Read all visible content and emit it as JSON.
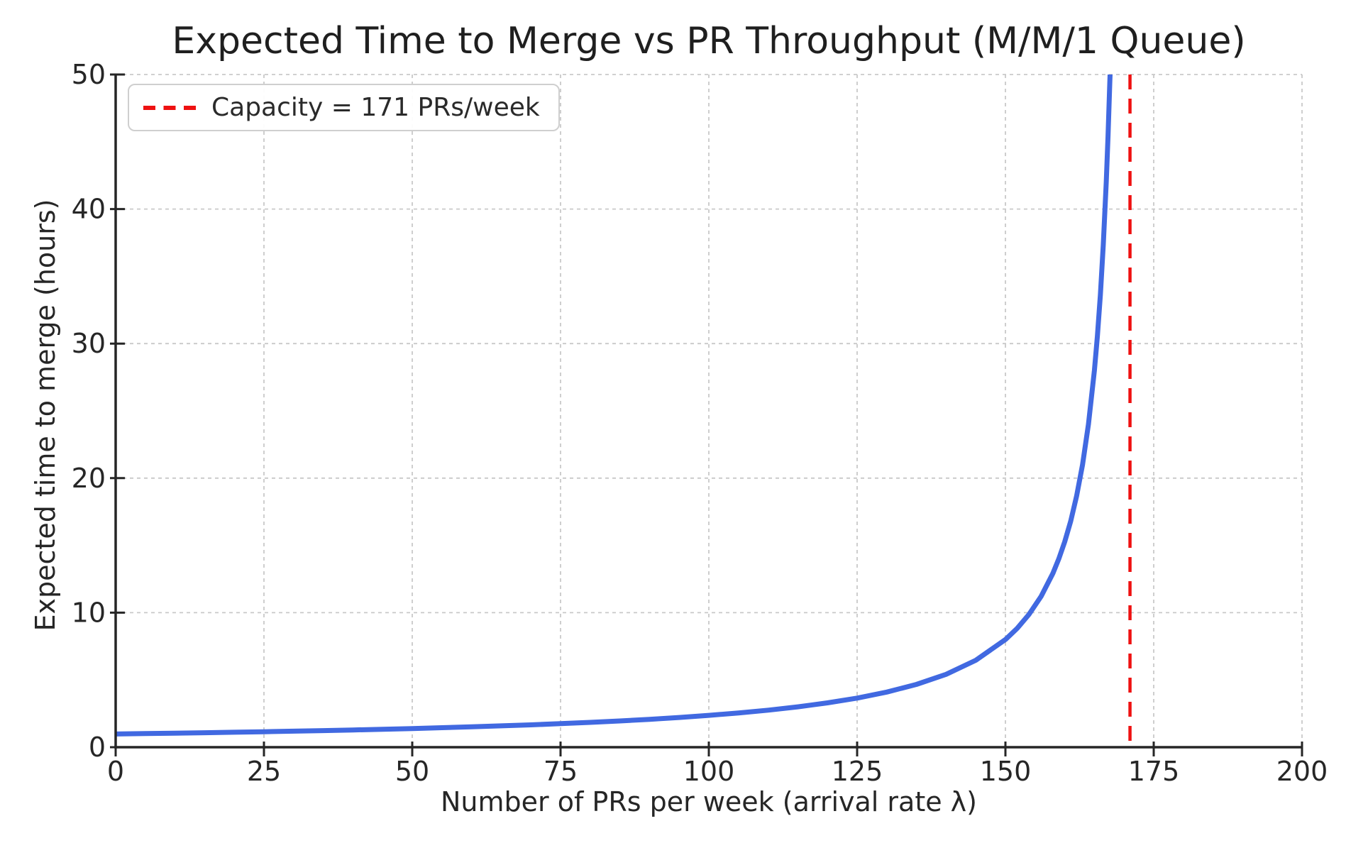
{
  "chart_data": {
    "type": "line",
    "title": "Expected Time to Merge vs PR Throughput (M/M/1 Queue)",
    "xlabel": "Number of PRs per week (arrival rate λ)",
    "ylabel": "Expected time to merge (hours)",
    "xlim": [
      0,
      200
    ],
    "ylim": [
      0,
      50
    ],
    "xticks": [
      0,
      25,
      50,
      75,
      100,
      125,
      150,
      175,
      200
    ],
    "yticks": [
      0,
      10,
      20,
      30,
      40,
      50
    ],
    "grid": {
      "visible": true,
      "linestyle": "dashed",
      "color": "#c9c9c9"
    },
    "axis_color": "#262626",
    "background": "#ffffff",
    "series": [
      {
        "name": "expected_time_to_merge",
        "color": "#4169e1",
        "linestyle": "solid",
        "line_width": 7,
        "x": [
          0,
          5,
          10,
          15,
          20,
          25,
          30,
          35,
          40,
          45,
          50,
          55,
          60,
          65,
          70,
          75,
          80,
          85,
          90,
          95,
          100,
          105,
          110,
          115,
          120,
          125,
          130,
          135,
          140,
          145,
          150,
          152,
          154,
          156,
          158,
          159,
          160,
          161,
          162,
          163,
          164,
          165,
          165.5,
          166,
          166.5,
          167,
          167.3,
          167.6,
          167.64
        ],
        "y": [
          0.982,
          1.012,
          1.043,
          1.077,
          1.113,
          1.151,
          1.191,
          1.235,
          1.282,
          1.333,
          1.388,
          1.448,
          1.514,
          1.585,
          1.663,
          1.75,
          1.846,
          1.953,
          2.074,
          2.211,
          2.366,
          2.545,
          2.754,
          3.0,
          3.294,
          3.652,
          4.098,
          4.667,
          5.419,
          6.462,
          8.0,
          8.842,
          9.882,
          11.2,
          12.923,
          14.0,
          15.273,
          16.8,
          18.667,
          21.0,
          24.0,
          28.0,
          30.545,
          33.6,
          37.333,
          42.0,
          45.405,
          49.412,
          50.0
        ]
      }
    ],
    "vline": {
      "x": 171,
      "color": "#ee1111",
      "linestyle": "dashed",
      "line_width": 4.5
    },
    "legend": {
      "position": "upper-left",
      "entries": [
        {
          "label": "Capacity = 171 PRs/week",
          "color": "#ee1111",
          "linestyle": "dashed"
        }
      ]
    }
  }
}
